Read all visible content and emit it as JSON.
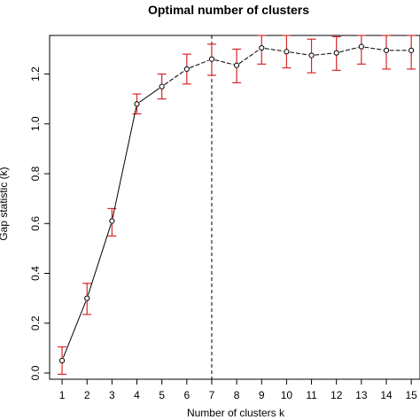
{
  "chart_data": {
    "type": "line",
    "title": "Optimal number of clusters",
    "xlabel": "Number of clusters k",
    "ylabel": "Gap statistic (k)",
    "x": [
      1,
      2,
      3,
      4,
      5,
      6,
      7,
      8,
      9,
      10,
      11,
      12,
      13,
      14,
      15
    ],
    "series": [
      {
        "values": [
          0.05,
          0.3,
          0.61,
          1.08,
          1.15,
          1.22,
          1.26,
          1.235,
          1.305,
          1.29,
          1.275,
          1.285,
          1.31,
          1.295,
          1.295
        ],
        "err_lower": [
          -0.005,
          0.235,
          0.55,
          1.04,
          1.1,
          1.16,
          1.195,
          1.165,
          1.24,
          1.225,
          1.205,
          1.215,
          1.24,
          1.22,
          1.22
        ],
        "err_upper": [
          0.105,
          0.36,
          0.66,
          1.12,
          1.2,
          1.28,
          1.32,
          1.3,
          1.37,
          1.36,
          1.34,
          1.35,
          1.37,
          1.36,
          1.36
        ]
      }
    ],
    "optimal_k": 7,
    "xlim": [
      0.5,
      15.35
    ],
    "ylim": [
      -0.025,
      1.355
    ],
    "xticks": [
      "1",
      "2",
      "3",
      "4",
      "5",
      "6",
      "7",
      "8",
      "9",
      "10",
      "11",
      "12",
      "13",
      "14",
      "15"
    ],
    "yticks": [
      "0.0",
      "0.2",
      "0.4",
      "0.6",
      "0.8",
      "1.0",
      "1.2"
    ],
    "yticks_values": [
      0.0,
      0.2,
      0.4,
      0.6,
      0.8,
      1.0,
      1.2
    ],
    "grid": false,
    "colors": {
      "line": "#000000",
      "errorbar": "#d62728",
      "vline": "#000000"
    }
  }
}
